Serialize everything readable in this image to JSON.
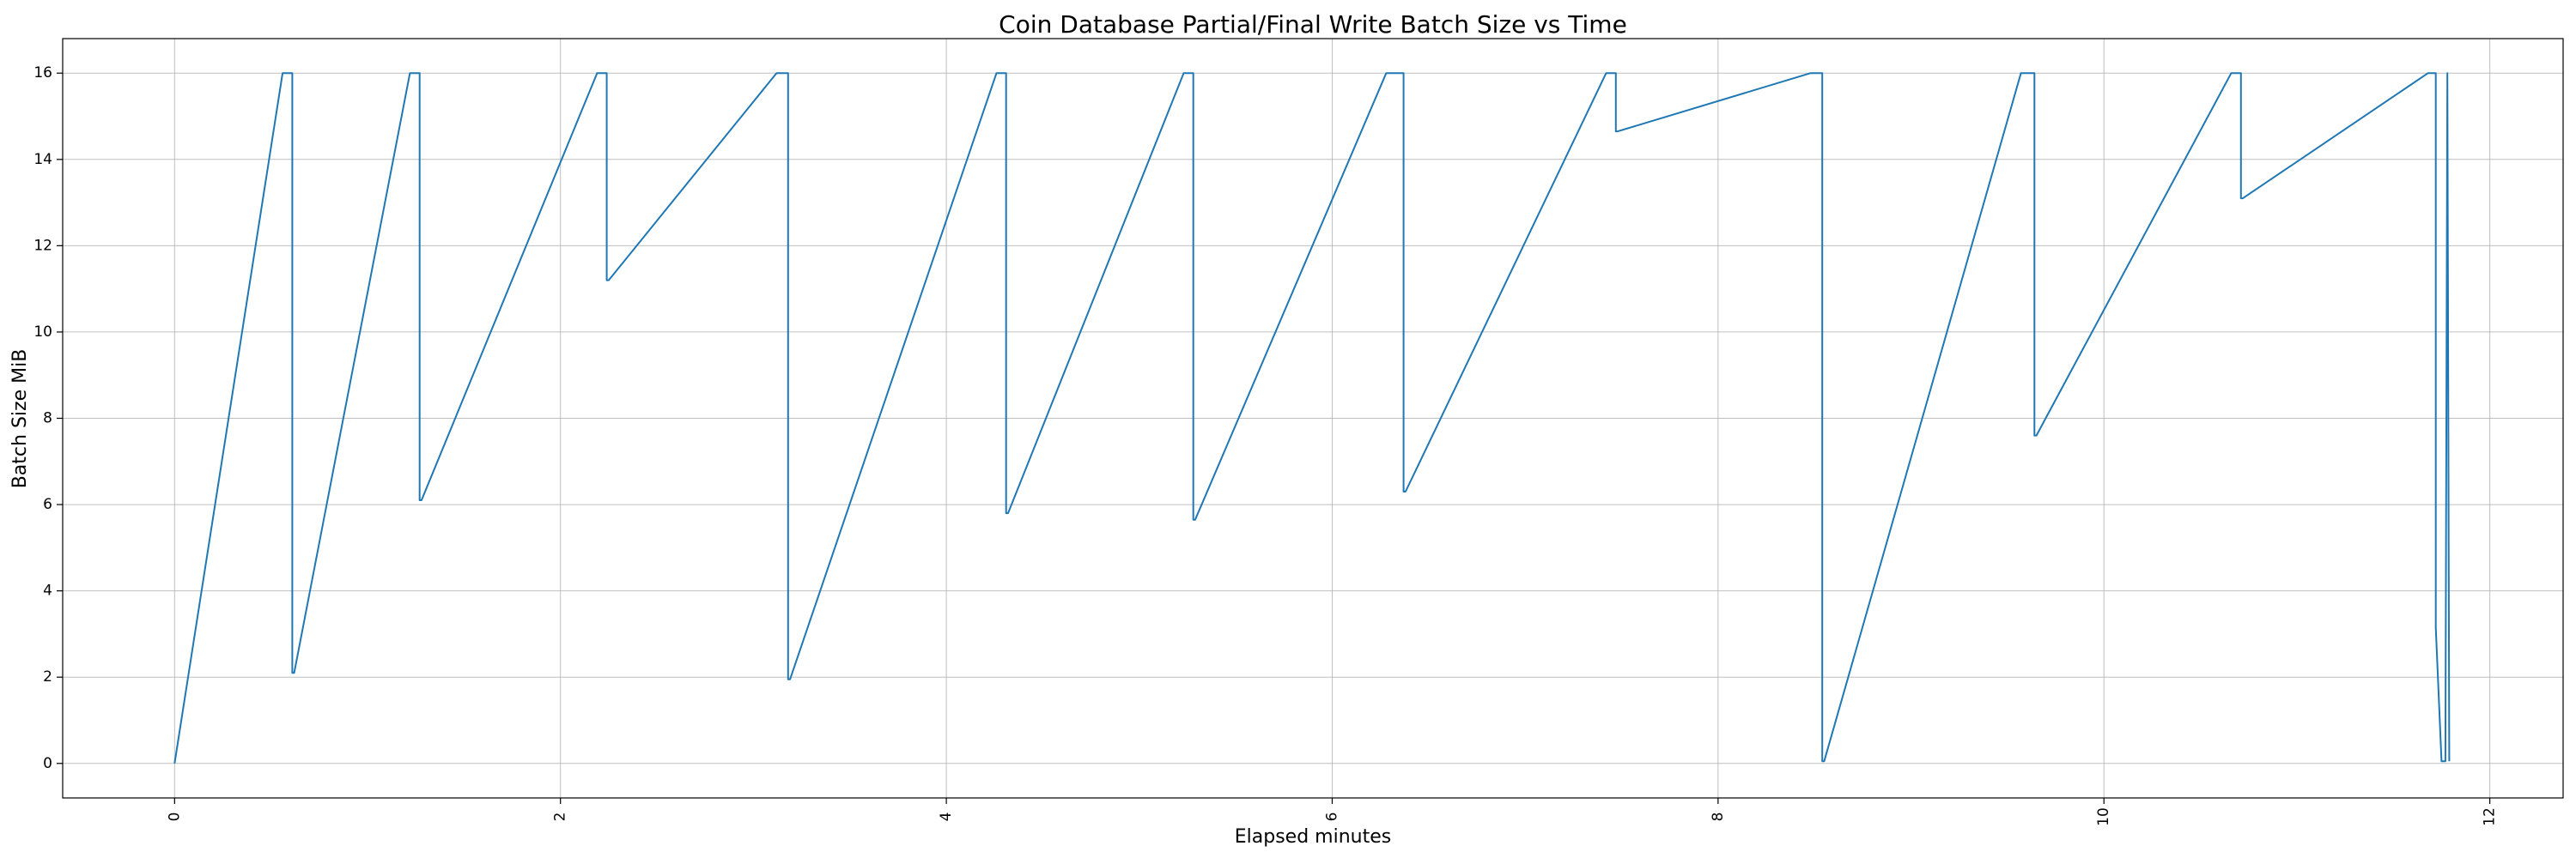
{
  "chart_data": {
    "type": "line",
    "title": "Coin Database Partial/Final Write Batch Size vs Time",
    "xlabel": "Elapsed minutes",
    "ylabel": "Batch Size MiB",
    "xlim": [
      -0.58,
      12.38
    ],
    "ylim": [
      -0.8,
      16.8
    ],
    "x_ticks": [
      0,
      2,
      4,
      6,
      8,
      10,
      12
    ],
    "y_ticks": [
      0,
      2,
      4,
      6,
      8,
      10,
      12,
      14,
      16
    ],
    "x_tick_rotation": -90,
    "grid": true,
    "series": [
      {
        "color": "#1f77b4",
        "x": [
          0,
          0.56,
          0.61,
          0.61,
          0.62,
          1.22,
          1.27,
          1.27,
          1.28,
          2.19,
          2.24,
          2.24,
          2.25,
          3.12,
          3.18,
          3.18,
          3.19,
          4.26,
          4.31,
          4.31,
          4.32,
          5.23,
          5.28,
          5.28,
          5.29,
          6.28,
          6.37,
          6.37,
          6.38,
          7.42,
          7.47,
          7.47,
          7.48,
          8.48,
          8.54,
          8.54,
          8.55,
          9.57,
          9.64,
          9.64,
          9.65,
          10.66,
          10.71,
          10.71,
          10.72,
          11.68,
          11.72,
          11.72,
          11.75,
          11.77,
          11.78,
          11.79
        ],
        "y": [
          0,
          16,
          16,
          2.1,
          2.1,
          16,
          16,
          6.1,
          6.1,
          16,
          16,
          11.2,
          11.2,
          16,
          16,
          1.95,
          1.95,
          16,
          16,
          5.8,
          5.8,
          16,
          16,
          5.65,
          5.65,
          16,
          16,
          6.3,
          6.3,
          16,
          16,
          14.65,
          14.65,
          16,
          16,
          0.05,
          0.05,
          16,
          16,
          7.6,
          7.6,
          16,
          16,
          13.1,
          13.1,
          16,
          16,
          3.15,
          0.05,
          0.05,
          16,
          0.05
        ]
      }
    ]
  }
}
